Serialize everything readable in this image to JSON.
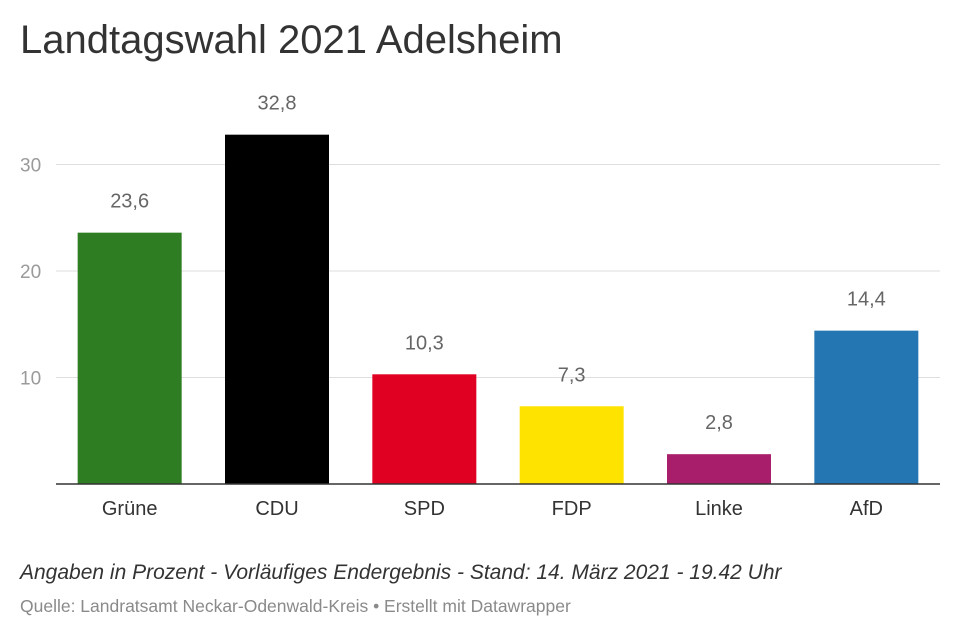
{
  "chart_data": {
    "type": "bar",
    "title": "Landtagswahl 2021 Adelsheim",
    "categories": [
      "Grüne",
      "CDU",
      "SPD",
      "FDP",
      "Linke",
      "AfD"
    ],
    "values": [
      23.6,
      32.8,
      10.3,
      7.3,
      2.8,
      14.4
    ],
    "value_labels": [
      "23,6",
      "32,8",
      "10,3",
      "7,3",
      "2,8",
      "14,4"
    ],
    "colors": [
      "#2e7d22",
      "#000000",
      "#e00021",
      "#ffe300",
      "#a91e6a",
      "#2476b3"
    ],
    "yticks": [
      10,
      20,
      30
    ],
    "ylim": [
      0,
      35
    ],
    "grid": true
  },
  "footer": {
    "notes": "Angaben in Prozent - Vorläufiges Endergebnis - Stand: 14. März 2021 - 19.42 Uhr",
    "source": "Quelle: Landratsamt Neckar-Odenwald-Kreis • Erstellt mit Datawrapper"
  }
}
